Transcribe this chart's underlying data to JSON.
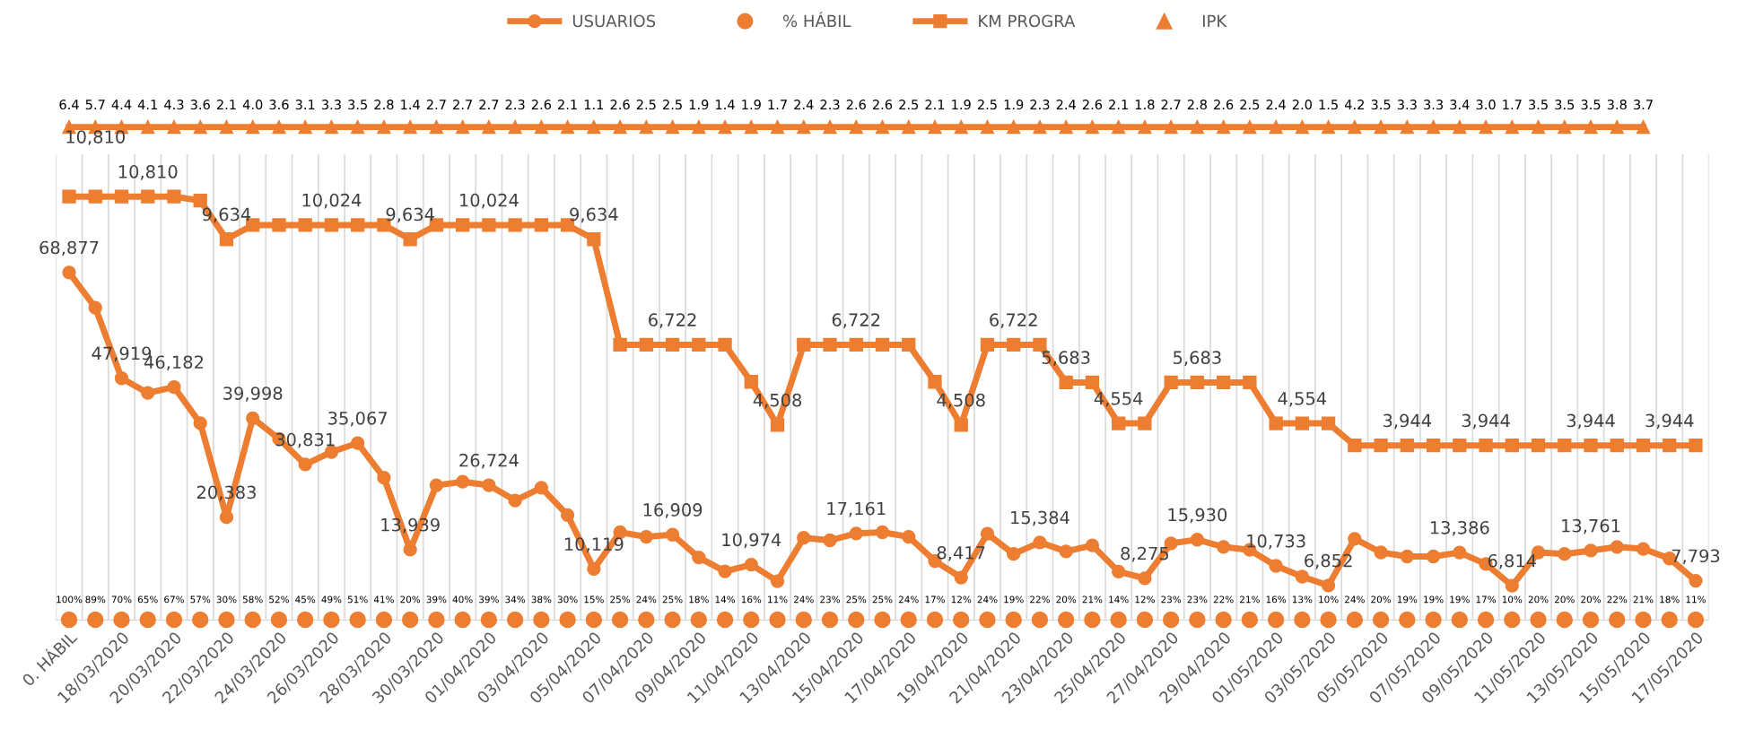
{
  "chart_data": [
    {
      "type": "other",
      "categories": [
        null,
        null,
        null,
        null,
        null,
        null,
        null,
        null,
        null,
        null,
        null,
        null,
        null,
        null,
        null,
        null,
        null,
        null,
        null,
        null,
        null,
        null,
        null,
        null,
        null,
        null,
        null,
        null,
        null,
        null,
        null,
        null,
        null,
        null,
        null,
        null,
        null,
        null,
        null,
        null,
        null,
        null,
        null,
        null,
        null,
        null,
        null,
        null,
        null,
        null,
        null,
        null,
        null,
        null,
        null,
        null,
        null,
        null,
        null,
        null,
        null,
        null,
        null
      ],
      "series": [
        {
          "name": "IPK",
          "marker": "triangle",
          "color": "#ed7d31",
          "values": [
            6.4,
            5.7,
            4.4,
            4.1,
            4.3,
            3.6,
            2.1,
            4.0,
            3.6,
            3.1,
            3.3,
            3.5,
            2.8,
            1.4,
            2.7,
            2.7,
            2.7,
            2.3,
            2.6,
            2.1,
            1.1,
            2.6,
            2.5,
            2.5,
            1.9,
            1.4,
            1.9,
            1.7,
            2.4,
            2.3,
            2.6,
            2.6,
            2.5,
            2.1,
            1.9,
            2.5,
            1.9,
            2.3,
            2.4,
            2.6,
            2.1,
            1.8,
            2.7,
            2.8,
            2.6,
            2.5,
            2.4,
            2.0,
            1.5,
            4.2,
            3.5,
            3.3,
            3.3,
            3.4,
            3.0,
            1.7,
            3.5,
            3.5,
            3.5,
            3.8,
            3.7,
            null,
            null
          ],
          "value_labels": [
            "6.4",
            "5.7",
            "4.4",
            "4.1",
            "4.3",
            "3.6",
            "2.1",
            "4.0",
            "3.6",
            "3.1",
            "3.3",
            "3.5",
            "2.8",
            "1.4",
            "2.7",
            "2.7",
            "2.7",
            "2.3",
            "2.6",
            "2.1",
            "1.1",
            "2.6",
            "2.5",
            "2.5",
            "1.9",
            "1.4",
            "1.9",
            "1.7",
            "2.4",
            "2.3",
            "2.6",
            "2.6",
            "2.5",
            "2.1",
            "1.9",
            "2.5",
            "1.9",
            "2.3",
            "2.4",
            "2.6",
            "2.1",
            "1.8",
            "2.7",
            "2.8",
            "2.6",
            "2.5",
            "2.4",
            "2.0",
            "1.5",
            "4.2",
            "3.5",
            "3.3",
            "3.3",
            "3.4",
            "3.0",
            "1.7",
            "3.5",
            "3.5",
            "3.5",
            "3.8",
            "3.7",
            null,
            null
          ]
        }
      ]
    },
    {
      "type": "line",
      "tick_labels": "x",
      "grid": "x",
      "legend": "top",
      "ylim": [
        0,
        92300
      ],
      "y2lim": [
        -873,
        11978
      ],
      "categories": [
        "0. HÁBIL",
        null,
        "18/03/2020",
        null,
        "20/03/2020",
        null,
        "22/03/2020",
        null,
        "24/03/2020",
        null,
        "26/03/2020",
        null,
        "28/03/2020",
        null,
        "30/03/2020",
        null,
        "01/04/2020",
        null,
        "03/04/2020",
        null,
        "05/04/2020",
        null,
        "07/04/2020",
        null,
        "09/04/2020",
        null,
        "11/04/2020",
        null,
        "13/04/2020",
        null,
        "15/04/2020",
        null,
        "17/04/2020",
        null,
        "19/04/2020",
        null,
        "21/04/2020",
        null,
        "23/04/2020",
        null,
        "25/04/2020",
        null,
        "27/04/2020",
        null,
        "29/04/2020",
        null,
        "01/05/2020",
        null,
        "03/05/2020",
        null,
        "05/05/2020",
        null,
        "07/05/2020",
        null,
        "09/05/2020",
        null,
        "11/05/2020",
        null,
        "13/05/2020",
        null,
        "15/05/2020",
        null,
        "17/05/2020"
      ],
      "series": [
        {
          "name": "USUARIOS",
          "marker": "circle",
          "color": "#ed7d31",
          "values": [
            68877,
            61900,
            47919,
            45000,
            46182,
            39000,
            20383,
            39998,
            35900,
            30831,
            33300,
            35067,
            28200,
            13939,
            26700,
            27400,
            26724,
            23700,
            26200,
            20800,
            10119,
            17400,
            16500,
            16909,
            12400,
            9650,
            10974,
            7700,
            16300,
            15800,
            17161,
            17400,
            16500,
            11700,
            8417,
            17100,
            13100,
            15384,
            13600,
            14800,
            9600,
            8275,
            15200,
            15930,
            14500,
            13900,
            10733,
            8600,
            6852,
            16100,
            13400,
            12600,
            12600,
            13386,
            11100,
            6814,
            13400,
            13100,
            13761,
            14500,
            14100,
            12200,
            7793
          ],
          "value_labels": [
            "68,877",
            null,
            "47,919",
            null,
            "46,182",
            null,
            "20,383",
            "39,998",
            null,
            "30,831",
            null,
            "35,067",
            null,
            "13,939",
            null,
            null,
            "26,724",
            null,
            null,
            null,
            "10,119",
            null,
            null,
            "16,909",
            null,
            null,
            "10,974",
            null,
            null,
            null,
            "17,161",
            null,
            null,
            null,
            "8,417",
            null,
            null,
            "15,384",
            null,
            null,
            null,
            "8,275",
            null,
            "15,930",
            null,
            null,
            "10,733",
            null,
            "6,852",
            null,
            null,
            null,
            null,
            "13,386",
            null,
            "6,814",
            null,
            null,
            "13,761",
            null,
            null,
            null,
            "7,793"
          ]
        },
        {
          "name": "KM PROGRA",
          "axis": "y2",
          "marker": "square",
          "color": "#ed7d31",
          "values": [
            10810,
            10810,
            10810,
            10810,
            10810,
            10700,
            9634,
            10024,
            10024,
            10024,
            10024,
            10024,
            10024,
            9634,
            10024,
            10024,
            10024,
            10024,
            10024,
            10024,
            9634,
            6722,
            6722,
            6722,
            6722,
            6722,
            5700,
            4508,
            6722,
            6722,
            6722,
            6722,
            6722,
            5700,
            4508,
            6722,
            6722,
            6722,
            5683,
            5683,
            4554,
            4554,
            5683,
            5683,
            5683,
            5683,
            4554,
            4554,
            4554,
            3944,
            3944,
            3944,
            3944,
            3944,
            3944,
            3944,
            3944,
            3944,
            3944,
            3944,
            3944,
            3944,
            3944
          ],
          "value_labels": [
            null,
            "10,810",
            null,
            "10,810",
            null,
            null,
            "9,634",
            null,
            null,
            null,
            "10,024",
            null,
            null,
            "9,634",
            null,
            null,
            "10,024",
            null,
            null,
            null,
            "9,634",
            null,
            null,
            "6,722",
            null,
            null,
            null,
            "4,508",
            null,
            null,
            "6,722",
            null,
            null,
            null,
            "4,508",
            null,
            "6,722",
            null,
            "5,683",
            null,
            "4,554",
            null,
            null,
            "5,683",
            null,
            null,
            null,
            "4,554",
            null,
            null,
            null,
            "3,944",
            null,
            null,
            "3,944",
            null,
            null,
            null,
            "3,944",
            null,
            null,
            "3,944",
            null
          ]
        }
      ]
    },
    {
      "type": "other",
      "categories": [
        null,
        null,
        null,
        null,
        null,
        null,
        null,
        null,
        null,
        null,
        null,
        null,
        null,
        null,
        null,
        null,
        null,
        null,
        null,
        null,
        null,
        null,
        null,
        null,
        null,
        null,
        null,
        null,
        null,
        null,
        null,
        null,
        null,
        null,
        null,
        null,
        null,
        null,
        null,
        null,
        null,
        null,
        null,
        null,
        null,
        null,
        null,
        null,
        null,
        null,
        null,
        null,
        null,
        null,
        null,
        null,
        null,
        null,
        null,
        null,
        null,
        null,
        null
      ],
      "series": [
        {
          "name": "% HÁBIL",
          "type": "scatter",
          "marker": "circle",
          "color": "#ed7d31",
          "values": [
            100,
            89,
            70,
            65,
            67,
            57,
            30,
            58,
            52,
            45,
            49,
            51,
            41,
            20,
            39,
            40,
            39,
            34,
            38,
            30,
            15,
            25,
            24,
            25,
            18,
            14,
            16,
            11,
            24,
            23,
            25,
            25,
            24,
            17,
            12,
            24,
            19,
            22,
            20,
            21,
            14,
            12,
            23,
            23,
            22,
            21,
            16,
            13,
            10,
            24,
            20,
            19,
            19,
            19,
            17,
            10,
            20,
            20,
            20,
            22,
            21,
            18,
            11
          ],
          "value_labels": [
            "100%",
            "89%",
            "70%",
            "65%",
            "67%",
            "57%",
            "30%",
            "58%",
            "52%",
            "45%",
            "49%",
            "51%",
            "41%",
            "20%",
            "39%",
            "40%",
            "39%",
            "34%",
            "38%",
            "30%",
            "15%",
            "25%",
            "24%",
            "25%",
            "18%",
            "14%",
            "16%",
            "11%",
            "24%",
            "23%",
            "25%",
            "25%",
            "24%",
            "17%",
            "12%",
            "24%",
            "19%",
            "22%",
            "20%",
            "21%",
            "14%",
            "12%",
            "23%",
            "23%",
            "22%",
            "21%",
            "16%",
            "13%",
            "10%",
            "24%",
            "20%",
            "19%",
            "19%",
            "19%",
            "17%",
            "10%",
            "20%",
            "20%",
            "20%",
            "22%",
            "21%",
            "18%",
            "11%"
          ]
        }
      ]
    }
  ]
}
